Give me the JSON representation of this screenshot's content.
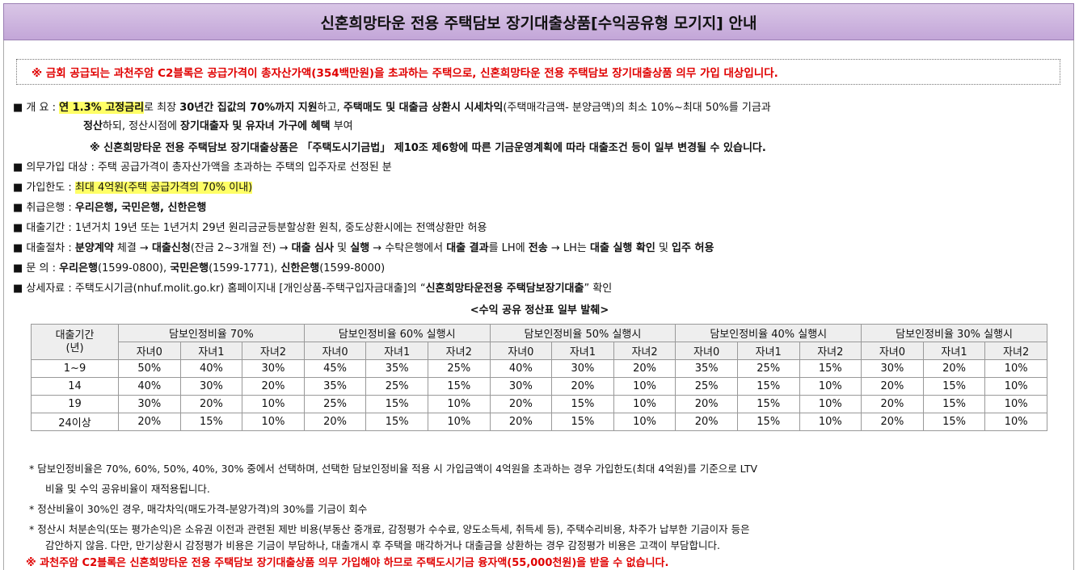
{
  "title": "신혼희망타운 전용 주택담보 장기대출상품[수익공유형 모기지] 안내",
  "notice": "※ 금회 공급되는 과천주암 C2블록은 공급가격이 총자산가액(354백만원)을 초과하는 주택으로, 신혼희망타운 전용 주택담보 장기대출상품 의무 가입 대상입니다.",
  "overview": {
    "label": "■ 개     요 : ",
    "hl1": "연 1.3% 고정금리",
    "t1": "로 최장 ",
    "b1": "30년간 집값의 70%까지 지원",
    "t2": "하고, ",
    "b2": "주택매도 및 대출금 상환시 시세차익",
    "t3": "(주택매각금액- 분양금액)의 최소 10%~최대 50%를 기금과",
    "b3": "정산",
    "t4": "하되, 정산시점에 ",
    "b4": "장기대출자 및 유자녀 가구에 혜택",
    "t5": " 부여",
    "note": "※ 신혼희망타운 전용 주택담보 장기대출상품은 「주택도시기금법」 제10조 제6항에 따른 기금운영계획에 따라 대출조건 등이 일부 변경될 수 있습니다."
  },
  "items": {
    "mandatory": "■ 의무가입 대상 : 주택 공급가격이 총자산가액을 초과하는 주택의 입주자로 선정된 분",
    "limit_label": "■ 가입한도 : ",
    "limit_value": "최대 4억원(주택 공급가격의 70% 이내)",
    "banks_label": "■ 취급은행 : ",
    "banks_value": "우리은행, 국민은행, 신한은행",
    "period": "■ 대출기간 : 1년거치 19년 또는 1년거치 29년 원리금균등분할상환 원칙, 중도상환시에는 전액상환만 허용",
    "proc_label": "■ 대출절차 : ",
    "proc": [
      {
        "t": "분양계약",
        "b": true
      },
      {
        "t": " 체결 → ",
        "b": false
      },
      {
        "t": "대출신청",
        "b": true
      },
      {
        "t": "(잔금 2~3개월 전) → ",
        "b": false
      },
      {
        "t": "대출 심사",
        "b": true
      },
      {
        "t": " 및 ",
        "b": false
      },
      {
        "t": "실행",
        "b": true
      },
      {
        "t": " → 수탁은행에서 ",
        "b": false
      },
      {
        "t": "대출 결과",
        "b": true
      },
      {
        "t": "를 LH에 ",
        "b": false
      },
      {
        "t": "전송",
        "b": true
      },
      {
        "t": " → LH는 ",
        "b": false
      },
      {
        "t": "대출 실행 확인",
        "b": true
      },
      {
        "t": " 및 ",
        "b": false
      },
      {
        "t": "입주 허용",
        "b": true
      }
    ],
    "contact_label": "■ 문     의 : ",
    "contact": [
      {
        "t": "우리은행",
        "b": true
      },
      {
        "t": "(1599-0800), ",
        "b": false
      },
      {
        "t": "국민은행",
        "b": true
      },
      {
        "t": "(1599-1771), ",
        "b": false
      },
      {
        "t": "신한은행",
        "b": true
      },
      {
        "t": "(1599-8000)",
        "b": false
      }
    ],
    "detail_a": "■ 상세자료 : 주택도시기금(nhuf.molit.go.kr) 홈페이지내 [개인상품-주택구입자금대출]의 “",
    "detail_b": "신혼희망타운전용 주택담보장기대출",
    "detail_c": "” 확인"
  },
  "table": {
    "caption": "<수익 공유 정산표 일부 발췌>",
    "row_header": "대출기간\n(년)",
    "groups": [
      "담보인정비율 70%",
      "담보인정비율 60% 실행시",
      "담보인정비율  50% 실행시",
      "담보인정비율 40% 실행시",
      "담보인정비율 30% 실행시"
    ],
    "subs": [
      "자녀0",
      "자녀1",
      "자녀2"
    ],
    "rows": [
      {
        "period": "1~9",
        "vals": [
          "50%",
          "40%",
          "30%",
          "45%",
          "35%",
          "25%",
          "40%",
          "30%",
          "20%",
          "35%",
          "25%",
          "15%",
          "30%",
          "20%",
          "10%"
        ]
      },
      {
        "period": "14",
        "vals": [
          "40%",
          "30%",
          "20%",
          "35%",
          "25%",
          "15%",
          "30%",
          "20%",
          "10%",
          "25%",
          "15%",
          "10%",
          "20%",
          "15%",
          "10%"
        ]
      },
      {
        "period": "19",
        "vals": [
          "30%",
          "20%",
          "10%",
          "25%",
          "15%",
          "10%",
          "20%",
          "15%",
          "10%",
          "20%",
          "15%",
          "10%",
          "20%",
          "15%",
          "10%"
        ]
      },
      {
        "period": "24이상",
        "vals": [
          "20%",
          "15%",
          "10%",
          "20%",
          "15%",
          "10%",
          "20%",
          "15%",
          "10%",
          "20%",
          "15%",
          "10%",
          "20%",
          "15%",
          "10%"
        ]
      }
    ]
  },
  "notes": {
    "n1a": "* 담보인정비율은 70%, 60%, 50%, 40%, 30% 중에서 선택하며, 선택한 담보인정비율 적용 시 가입금액이 4억원을 초과하는 경우 가입한도(최대 4억원)를 기준으로 LTV",
    "n1b": "비율 및 수익 공유비율이 재적용됩니다.",
    "n2": "* 정산비율이 30%인 경우, 매각차익(매도가격-분양가격)의 30%를 기금이 회수",
    "n3a": "* 정산시 처분손익(또는 평가손익)은 소유권 이전과 관련된 제반 비용(부동산 중개료, 감정평가 수수료, 양도소득세, 취득세 등), 주택수리비용, 차주가 납부한 기금이자 등은",
    "n3b": "감안하지 않음. 다만, 만기상환시 감정평가 비용은 기금이 부담하나, 대출개시 후 주택을 매각하거나 대출금을 상환하는 경우 감정평가 비용은 고객이 부담합니다.",
    "warning": "※ 과천주암 C2블록은 신혼희망타운 전용 주택담보 장기대출상품 의무 가입해야 하므로 주택도시기금 융자액(55,000천원)을 받을 수 없습니다."
  }
}
